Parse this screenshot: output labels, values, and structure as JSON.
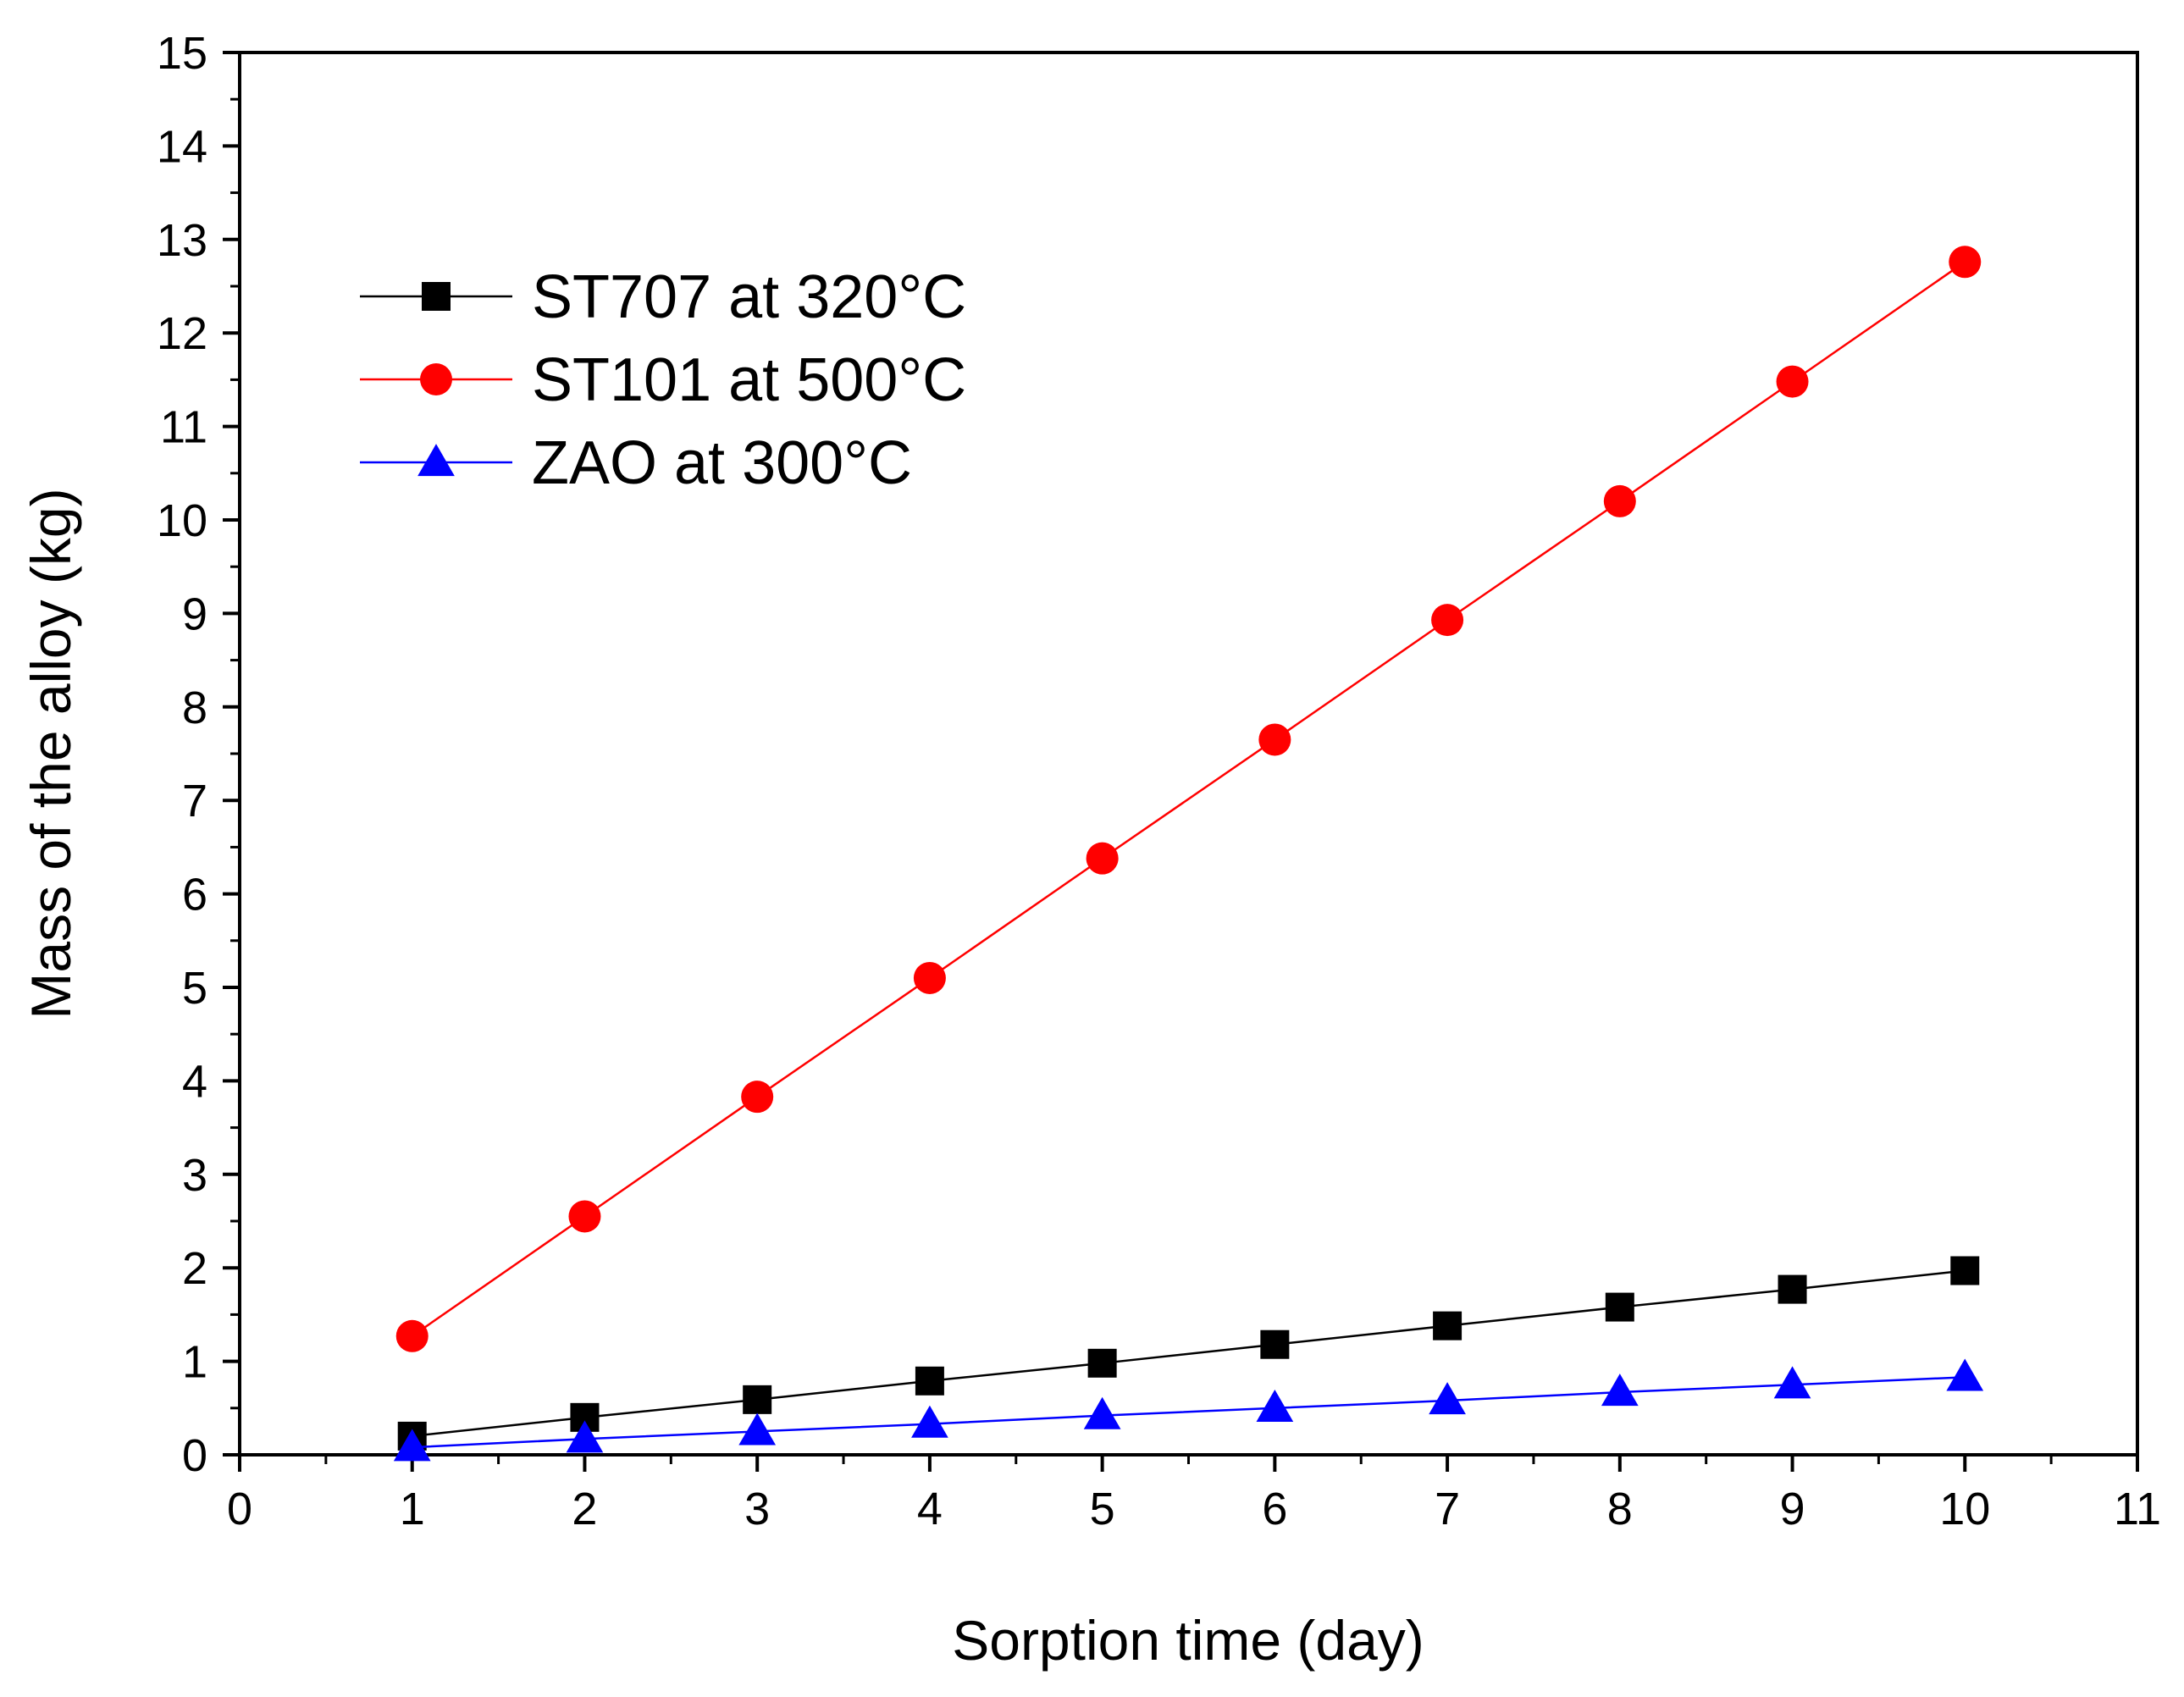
{
  "chart_data": {
    "type": "line",
    "title": "",
    "xlabel": "Sorption time (day)",
    "ylabel": "Mass of the alloy (kg)",
    "xlim": [
      0,
      11
    ],
    "ylim": [
      0,
      15
    ],
    "x_ticks": [
      0,
      1,
      2,
      3,
      4,
      5,
      6,
      7,
      8,
      9,
      10,
      11
    ],
    "y_ticks": [
      0,
      1,
      2,
      3,
      4,
      5,
      6,
      7,
      8,
      9,
      10,
      11,
      12,
      13,
      14,
      15
    ],
    "grid": false,
    "legend_position": "top-left",
    "x": [
      1,
      2,
      3,
      4,
      5,
      6,
      7,
      8,
      9,
      10
    ],
    "series": [
      {
        "name": "ST707 at 320°C",
        "color": "#000000",
        "marker": "square",
        "values": [
          0.2,
          0.4,
          0.59,
          0.79,
          0.98,
          1.18,
          1.38,
          1.58,
          1.77,
          1.97
        ]
      },
      {
        "name": "ST101 at 500°C",
        "color": "#ff0000",
        "marker": "circle",
        "values": [
          1.27,
          2.55,
          3.83,
          5.1,
          6.38,
          7.65,
          8.93,
          10.2,
          11.48,
          12.76
        ]
      },
      {
        "name": "ZAO at 300°C",
        "color": "#0000ff",
        "marker": "triangle",
        "values": [
          0.08,
          0.17,
          0.25,
          0.33,
          0.42,
          0.5,
          0.58,
          0.67,
          0.75,
          0.83
        ]
      }
    ]
  }
}
